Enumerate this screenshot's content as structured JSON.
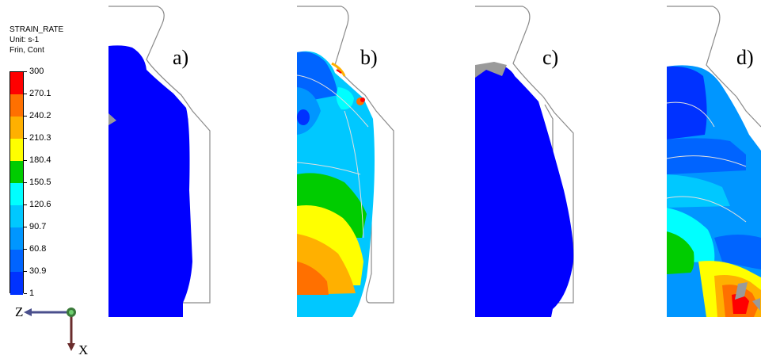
{
  "legend": {
    "title": "STRAIN_RATE",
    "unit": "Unit: s-1",
    "mode": "Frin, Cont",
    "ticks": [
      "300",
      "270.1",
      "240.2",
      "210.3",
      "180.4",
      "150.5",
      "120.6",
      "90.7",
      "60.8",
      "30.9",
      "1"
    ],
    "colors": [
      "#ff0000",
      "#ff7000",
      "#ffb000",
      "#ffff00",
      "#00cc00",
      "#00ffff",
      "#00c8ff",
      "#0096ff",
      "#0064ff",
      "#0032ff"
    ]
  },
  "axes": {
    "z_label": "Z",
    "x_label": "X"
  },
  "panels": [
    {
      "label": "a)"
    },
    {
      "label": "b)"
    },
    {
      "label": "c)"
    },
    {
      "label": "d)"
    }
  ],
  "colors": {
    "blue": "#0000ff",
    "outline": "#8a8a8a",
    "grey": "#9a9a9a"
  }
}
